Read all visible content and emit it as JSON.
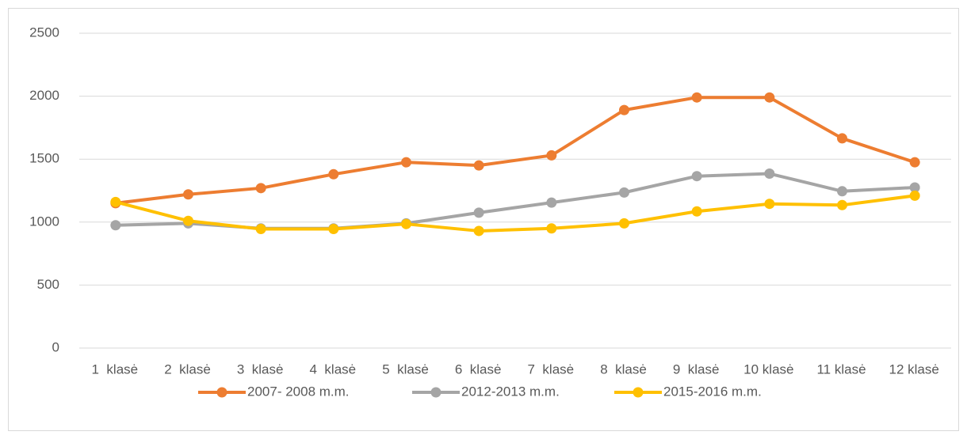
{
  "chart_data": {
    "type": "line",
    "categories": [
      "1  klasė",
      "2  klasė",
      "3  klasė",
      "4  klasė",
      "5  klasė",
      "6  klasė",
      "7  klasė",
      "8  klasė",
      "9  klasė",
      "10 klasė",
      "11 klasė",
      "12 klasė"
    ],
    "series": [
      {
        "name": "2007- 2008 m.m.",
        "color": "#ed7d31",
        "values": [
          1150,
          1220,
          1270,
          1380,
          1475,
          1450,
          1530,
          1890,
          1990,
          1990,
          1665,
          1475
        ]
      },
      {
        "name": "2012-2013 m.m.",
        "color": "#a5a5a5",
        "values": [
          975,
          990,
          950,
          950,
          990,
          1075,
          1155,
          1235,
          1365,
          1385,
          1245,
          1275
        ]
      },
      {
        "name": "2015-2016 m.m.",
        "color": "#ffc000",
        "values": [
          1160,
          1010,
          945,
          945,
          985,
          930,
          950,
          990,
          1085,
          1145,
          1135,
          1210
        ]
      }
    ],
    "ylim": [
      0,
      2500
    ],
    "yticks": [
      0,
      500,
      1000,
      1500,
      2000,
      2500
    ],
    "grid": true,
    "legend": "bottom"
  }
}
